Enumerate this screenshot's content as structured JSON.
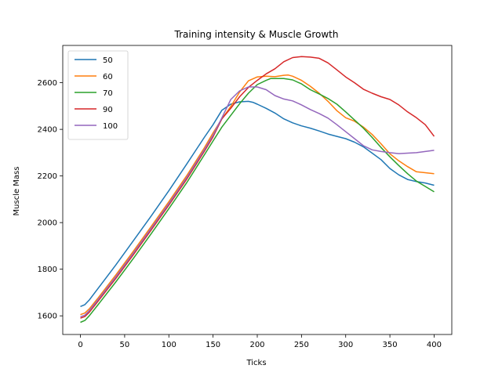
{
  "chart_data": {
    "type": "line",
    "title": "Training intensity & Muscle Growth",
    "xlabel": "Ticks",
    "ylabel": "Muscle Mass",
    "xlim": [
      -20,
      420
    ],
    "ylim": [
      1520,
      2760
    ],
    "xticks": [
      0,
      50,
      100,
      150,
      200,
      250,
      300,
      350,
      400
    ],
    "yticks": [
      1600,
      1800,
      2000,
      2200,
      2400,
      2600
    ],
    "grid": false,
    "legend_position": "top-left",
    "series": [
      {
        "name": "50",
        "color": "#1f77b4",
        "points": [
          [
            0,
            1640
          ],
          [
            5,
            1648
          ],
          [
            10,
            1668
          ],
          [
            20,
            1718
          ],
          [
            40,
            1818
          ],
          [
            60,
            1923
          ],
          [
            80,
            2028
          ],
          [
            100,
            2137
          ],
          [
            120,
            2250
          ],
          [
            140,
            2365
          ],
          [
            150,
            2420
          ],
          [
            160,
            2482
          ],
          [
            170,
            2508
          ],
          [
            180,
            2518
          ],
          [
            190,
            2520
          ],
          [
            195,
            2516
          ],
          [
            200,
            2508
          ],
          [
            210,
            2490
          ],
          [
            220,
            2470
          ],
          [
            230,
            2445
          ],
          [
            240,
            2428
          ],
          [
            250,
            2415
          ],
          [
            260,
            2405
          ],
          [
            270,
            2393
          ],
          [
            280,
            2380
          ],
          [
            290,
            2370
          ],
          [
            300,
            2360
          ],
          [
            310,
            2345
          ],
          [
            320,
            2325
          ],
          [
            330,
            2298
          ],
          [
            340,
            2270
          ],
          [
            350,
            2232
          ],
          [
            360,
            2205
          ],
          [
            370,
            2185
          ],
          [
            380,
            2176
          ],
          [
            390,
            2170
          ],
          [
            400,
            2160
          ]
        ]
      },
      {
        "name": "60",
        "color": "#ff7f0e",
        "points": [
          [
            0,
            1605
          ],
          [
            5,
            1612
          ],
          [
            10,
            1630
          ],
          [
            20,
            1677
          ],
          [
            40,
            1775
          ],
          [
            60,
            1878
          ],
          [
            80,
            1983
          ],
          [
            100,
            2090
          ],
          [
            120,
            2200
          ],
          [
            140,
            2320
          ],
          [
            150,
            2385
          ],
          [
            160,
            2445
          ],
          [
            170,
            2498
          ],
          [
            180,
            2560
          ],
          [
            190,
            2608
          ],
          [
            200,
            2625
          ],
          [
            210,
            2628
          ],
          [
            220,
            2626
          ],
          [
            230,
            2632
          ],
          [
            235,
            2633
          ],
          [
            240,
            2628
          ],
          [
            250,
            2610
          ],
          [
            260,
            2585
          ],
          [
            270,
            2555
          ],
          [
            280,
            2520
          ],
          [
            290,
            2480
          ],
          [
            300,
            2450
          ],
          [
            310,
            2435
          ],
          [
            320,
            2410
          ],
          [
            330,
            2378
          ],
          [
            340,
            2338
          ],
          [
            350,
            2295
          ],
          [
            360,
            2265
          ],
          [
            370,
            2240
          ],
          [
            380,
            2218
          ],
          [
            390,
            2214
          ],
          [
            400,
            2210
          ]
        ]
      },
      {
        "name": "70",
        "color": "#2ca02c",
        "points": [
          [
            0,
            1572
          ],
          [
            5,
            1580
          ],
          [
            10,
            1600
          ],
          [
            20,
            1648
          ],
          [
            40,
            1745
          ],
          [
            60,
            1847
          ],
          [
            80,
            1952
          ],
          [
            100,
            2060
          ],
          [
            120,
            2170
          ],
          [
            140,
            2290
          ],
          [
            150,
            2350
          ],
          [
            160,
            2410
          ],
          [
            170,
            2460
          ],
          [
            180,
            2510
          ],
          [
            190,
            2555
          ],
          [
            200,
            2592
          ],
          [
            210,
            2610
          ],
          [
            215,
            2618
          ],
          [
            230,
            2618
          ],
          [
            240,
            2612
          ],
          [
            250,
            2595
          ],
          [
            260,
            2570
          ],
          [
            270,
            2552
          ],
          [
            280,
            2532
          ],
          [
            290,
            2508
          ],
          [
            300,
            2475
          ],
          [
            310,
            2440
          ],
          [
            320,
            2405
          ],
          [
            330,
            2365
          ],
          [
            340,
            2322
          ],
          [
            350,
            2282
          ],
          [
            360,
            2245
          ],
          [
            370,
            2210
          ],
          [
            380,
            2178
          ],
          [
            390,
            2155
          ],
          [
            400,
            2132
          ]
        ]
      },
      {
        "name": "90",
        "color": "#d62728",
        "points": [
          [
            0,
            1590
          ],
          [
            5,
            1597
          ],
          [
            10,
            1615
          ],
          [
            20,
            1663
          ],
          [
            40,
            1760
          ],
          [
            60,
            1863
          ],
          [
            80,
            1968
          ],
          [
            100,
            2075
          ],
          [
            120,
            2185
          ],
          [
            140,
            2305
          ],
          [
            150,
            2368
          ],
          [
            160,
            2445
          ],
          [
            170,
            2490
          ],
          [
            180,
            2540
          ],
          [
            190,
            2580
          ],
          [
            200,
            2610
          ],
          [
            210,
            2638
          ],
          [
            220,
            2660
          ],
          [
            230,
            2690
          ],
          [
            240,
            2708
          ],
          [
            250,
            2712
          ],
          [
            260,
            2710
          ],
          [
            270,
            2705
          ],
          [
            280,
            2685
          ],
          [
            290,
            2655
          ],
          [
            300,
            2625
          ],
          [
            310,
            2600
          ],
          [
            320,
            2572
          ],
          [
            330,
            2555
          ],
          [
            340,
            2540
          ],
          [
            350,
            2528
          ],
          [
            360,
            2505
          ],
          [
            370,
            2475
          ],
          [
            380,
            2450
          ],
          [
            390,
            2420
          ],
          [
            400,
            2370
          ]
        ]
      },
      {
        "name": "100",
        "color": "#9467bd",
        "points": [
          [
            0,
            1596
          ],
          [
            5,
            1603
          ],
          [
            10,
            1622
          ],
          [
            20,
            1670
          ],
          [
            40,
            1767
          ],
          [
            60,
            1870
          ],
          [
            80,
            1975
          ],
          [
            100,
            2082
          ],
          [
            120,
            2192
          ],
          [
            140,
            2312
          ],
          [
            150,
            2375
          ],
          [
            160,
            2450
          ],
          [
            170,
            2528
          ],
          [
            180,
            2565
          ],
          [
            190,
            2582
          ],
          [
            200,
            2582
          ],
          [
            210,
            2570
          ],
          [
            220,
            2545
          ],
          [
            230,
            2530
          ],
          [
            240,
            2522
          ],
          [
            250,
            2505
          ],
          [
            260,
            2485
          ],
          [
            270,
            2468
          ],
          [
            280,
            2448
          ],
          [
            290,
            2420
          ],
          [
            300,
            2390
          ],
          [
            310,
            2360
          ],
          [
            320,
            2330
          ],
          [
            330,
            2312
          ],
          [
            340,
            2305
          ],
          [
            350,
            2300
          ],
          [
            360,
            2296
          ],
          [
            370,
            2298
          ],
          [
            380,
            2300
          ],
          [
            390,
            2305
          ],
          [
            400,
            2310
          ]
        ]
      }
    ]
  }
}
